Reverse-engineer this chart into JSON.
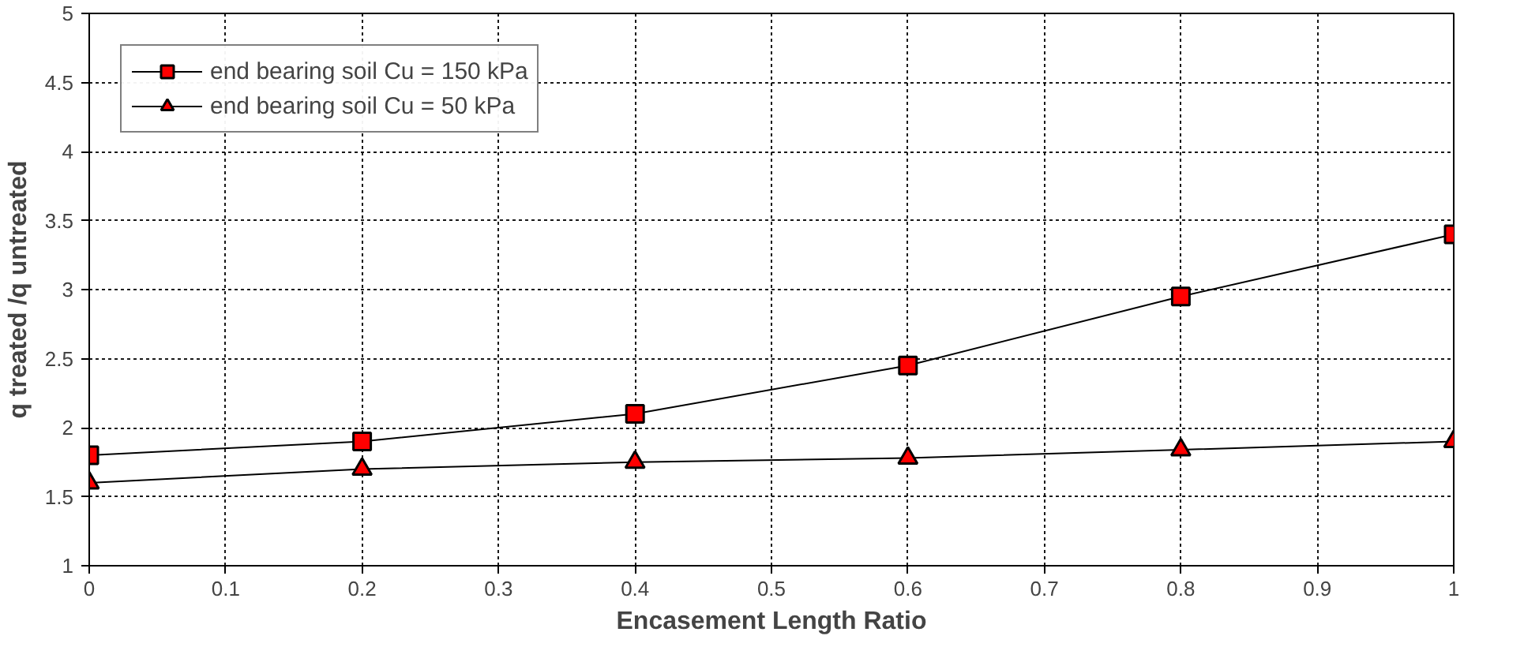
{
  "chart_data": {
    "type": "line",
    "xlabel": "Encasement Length Ratio",
    "ylabel": "q treated /q untreated",
    "x": [
      0,
      0.2,
      0.4,
      0.6,
      0.8,
      1
    ],
    "series": [
      {
        "name": "end bearing soil Cu = 150 kPa",
        "color": "#ff0000",
        "marker": "square",
        "values": [
          1.8,
          1.9,
          2.1,
          2.45,
          2.95,
          3.4
        ]
      },
      {
        "name": "end bearing soil Cu = 50 kPa",
        "color": "#ff0000",
        "marker": "triangle",
        "values": [
          1.6,
          1.7,
          1.75,
          1.78,
          1.84,
          1.9
        ]
      }
    ],
    "xlim": [
      0,
      1
    ],
    "xticks": [
      0,
      0.1,
      0.2,
      0.3,
      0.4,
      0.5,
      0.6,
      0.7,
      0.8,
      0.9,
      1
    ],
    "ylim": [
      1,
      5
    ],
    "yticks": [
      1,
      1.5,
      2,
      2.5,
      3,
      3.5,
      4,
      4.5,
      5
    ],
    "grid": true,
    "legend": "top left",
    "line_style": "solid"
  }
}
